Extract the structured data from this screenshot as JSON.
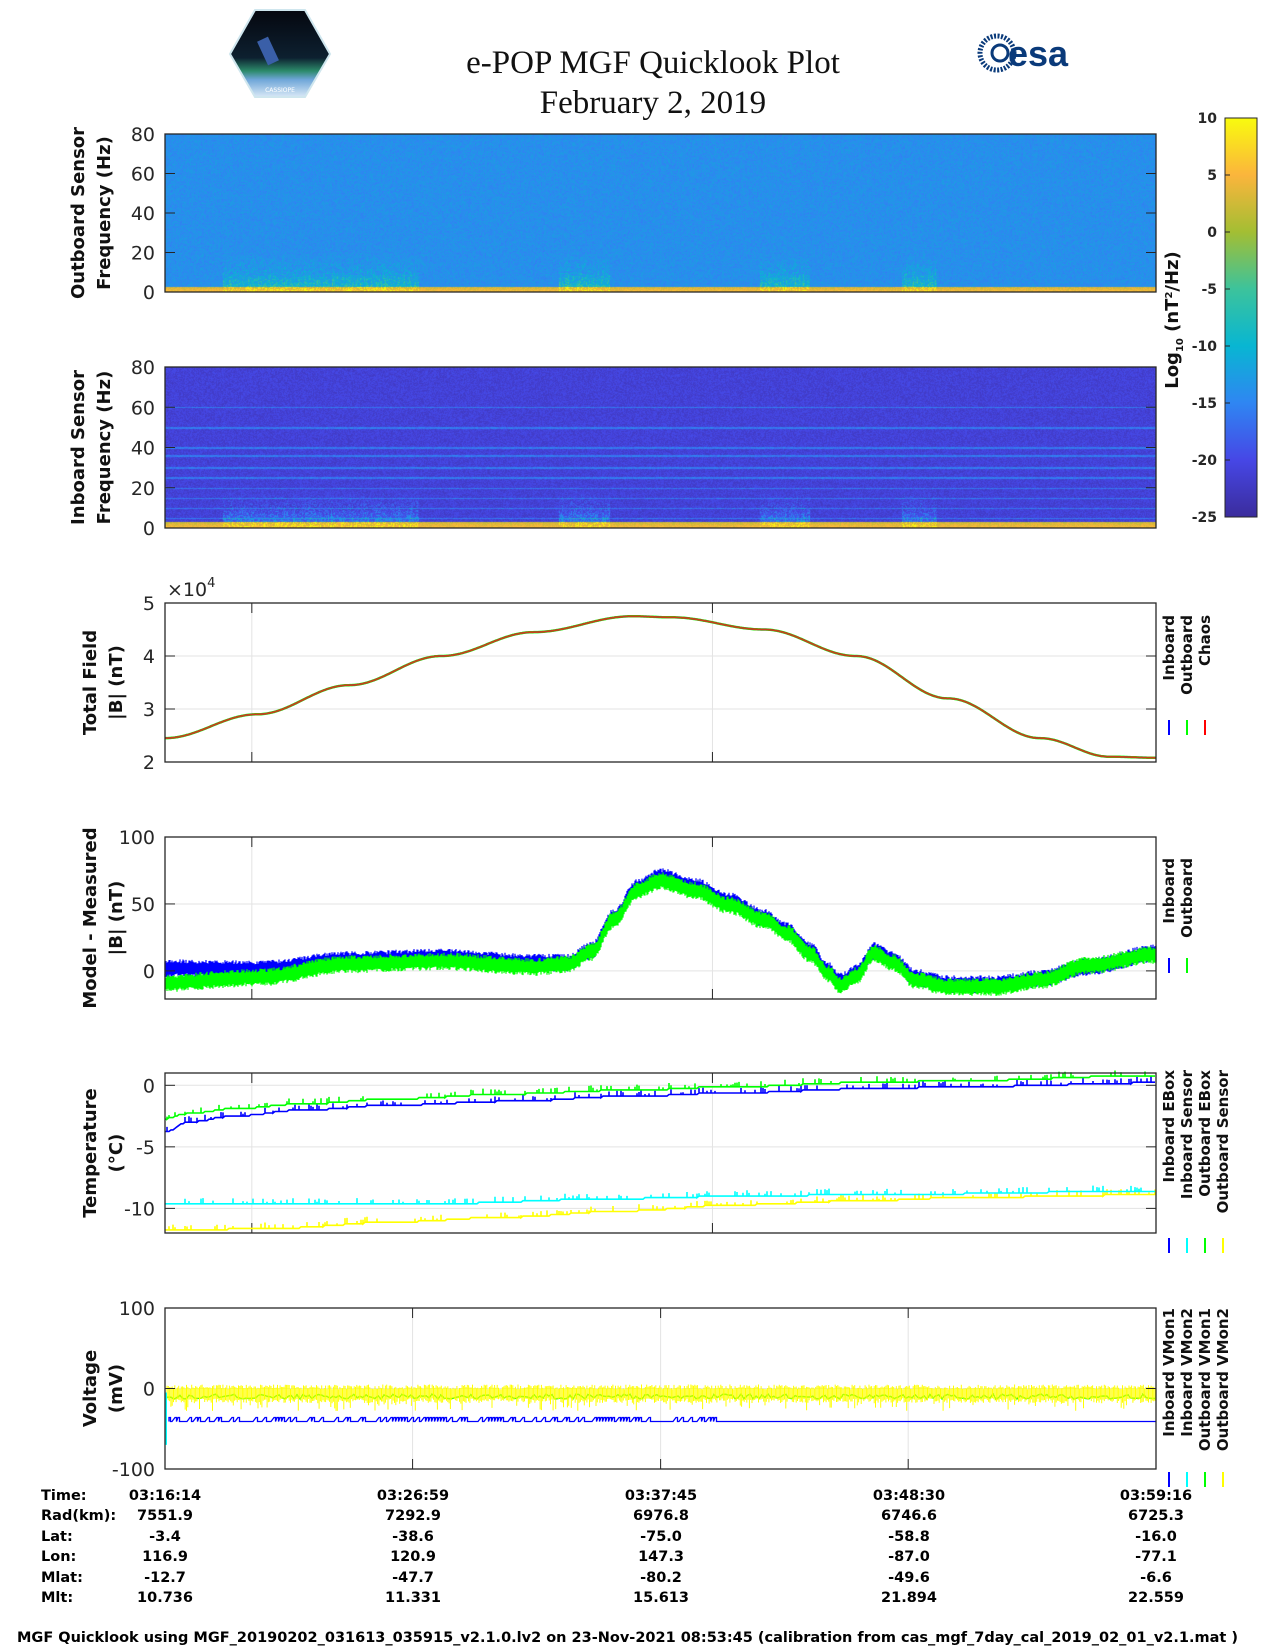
{
  "header": {
    "title": "e-POP MGF Quicklook Plot",
    "date": "February 2, 2019",
    "left_logo_text": "CASSIOPE",
    "right_logo_text": "esa"
  },
  "colorbar": {
    "label_parts": [
      "Log",
      "10",
      " (nT",
      "2",
      "/Hz)"
    ],
    "range": [
      -25,
      10
    ],
    "ticks": [
      10,
      5,
      0,
      -5,
      -10,
      -15,
      -20,
      -25
    ],
    "colors": {
      "-25": "#3b2c9c",
      "-20": "#4647e6",
      "-15": "#2f86f2",
      "-10": "#08b6d2",
      "-5": "#3cc39c",
      "0": "#a3be33",
      "5": "#fbb53c",
      "10": "#f9fb0e"
    }
  },
  "multiplier": {
    "base": "×10",
    "exp": "4"
  },
  "chart_data": {
    "time_range_minutes": [
      0,
      43.03
    ],
    "panels": [
      {
        "id": "spec_out",
        "type": "heatmap",
        "ylabel": [
          "Outboard Sensor",
          "Frequency (Hz)"
        ],
        "ylim": [
          0,
          80
        ],
        "yticks": [
          0,
          20,
          40,
          60,
          80
        ],
        "background_log": -14,
        "low_freq_band_hz": 3,
        "burst_intervals_min": [
          [
            2.5,
            11
          ],
          [
            17.1,
            19.3
          ],
          [
            25.8,
            28.0
          ],
          [
            32.0,
            33.5
          ]
        ],
        "line_freqs_hz": []
      },
      {
        "id": "spec_in",
        "type": "heatmap",
        "ylabel": [
          "Inboard Sensor",
          "Frequency (Hz)"
        ],
        "ylim": [
          0,
          80
        ],
        "yticks": [
          0,
          20,
          40,
          60,
          80
        ],
        "background_log": -21,
        "low_freq_band_hz": 3,
        "burst_intervals_min": [
          [
            2.5,
            11
          ],
          [
            17.1,
            19.3
          ],
          [
            25.8,
            28.0
          ],
          [
            32.0,
            33.5
          ]
        ],
        "line_freqs_hz": [
          5,
          10,
          15,
          20,
          25,
          30,
          36,
          40,
          50,
          60
        ]
      },
      {
        "id": "total",
        "type": "line",
        "ylabel": [
          "Total Field",
          "|B| (nT)"
        ],
        "ylim": [
          2,
          5
        ],
        "yticks": [
          2,
          3,
          4,
          5
        ],
        "scale": 10000,
        "xgrid_min": [
          3.77,
          23.77
        ],
        "legend": [
          {
            "label": "Inboard",
            "color": "#0000ff"
          },
          {
            "label": "Outboard",
            "color": "#00ff00"
          },
          {
            "label": "Chaos",
            "color": "#ff0000"
          }
        ],
        "series": [
          {
            "name": "Chaos",
            "x": [
              0,
              4,
              8,
              12,
              16,
              20.3,
              22,
              26,
              30,
              34,
              38,
              41,
              43.03
            ],
            "y": [
              2.45,
              2.9,
              3.45,
              4.0,
              4.45,
              4.75,
              4.73,
              4.5,
              4.0,
              3.2,
              2.45,
              2.1,
              2.08
            ]
          }
        ]
      },
      {
        "id": "model",
        "type": "line",
        "ylabel": [
          "Model - Measured",
          "|B| (nT)"
        ],
        "ylim": [
          -21,
          100
        ],
        "yticks": [
          0,
          50,
          100
        ],
        "xgrid_min": [
          3.77,
          23.77
        ],
        "legend": [
          {
            "label": "Inboard",
            "color": "#0000ff"
          },
          {
            "label": "Outboard",
            "color": "#00ff00"
          }
        ],
        "series": [
          {
            "name": "Inboard",
            "x": [
              0,
              4,
              8,
              12,
              16,
              17.5,
              18.5,
              19.5,
              20.5,
              21.5,
              23,
              24.5,
              26,
              27,
              28,
              28.8,
              29.3,
              30,
              30.8,
              31.6,
              32.6,
              34,
              36,
              38,
              40,
              43.03
            ],
            "y": [
              2,
              1,
              8,
              10,
              6,
              6,
              15,
              40,
              62,
              70,
              63,
              52,
              40,
              30,
              15,
              0,
              -8,
              -2,
              15,
              8,
              -5,
              -10,
              -10,
              -6,
              3,
              13
            ]
          },
          {
            "name": "Outboard",
            "x": [
              0,
              4,
              8,
              12,
              16,
              17.5,
              18.5,
              19.5,
              20.5,
              21.5,
              23,
              24.5,
              26,
              27,
              28,
              28.8,
              29.3,
              30,
              30.8,
              31.6,
              32.6,
              34,
              36,
              38,
              40,
              43.03
            ],
            "y": [
              -9,
              -5,
              5,
              7,
              3,
              5,
              14,
              38,
              60,
              67,
              60,
              49,
              38,
              28,
              13,
              -2,
              -11,
              -4,
              13,
              6,
              -7,
              -12,
              -12,
              -7,
              4,
              12
            ]
          }
        ]
      },
      {
        "id": "temp",
        "type": "line",
        "ylabel": [
          "Temperature",
          "(°C)"
        ],
        "ylim": [
          -12,
          1
        ],
        "yticks": [
          -10,
          -5,
          0
        ],
        "xgrid_min": [
          3.77,
          23.77
        ],
        "legend": [
          {
            "label": "Inboard EBox",
            "color": "#0000ff"
          },
          {
            "label": "Inboard Sensor",
            "color": "#00ffff"
          },
          {
            "label": "Outboard EBox",
            "color": "#00ff00"
          },
          {
            "label": "Outboard Sensor",
            "color": "#ffff00"
          }
        ],
        "series": [
          {
            "name": "Inboard EBox",
            "x": [
              0,
              1,
              3,
              6,
              10,
              15,
              20,
              25,
              30,
              35,
              43.03
            ],
            "y": [
              -3.8,
              -3.0,
              -2.5,
              -2.0,
              -1.6,
              -1.3,
              -0.9,
              -0.6,
              -0.3,
              -0.1,
              0.2
            ]
          },
          {
            "name": "Inboard Sensor",
            "x": [
              0,
              12,
              20,
              25,
              30,
              43.03
            ],
            "y": [
              -9.6,
              -9.6,
              -9.2,
              -9.0,
              -8.9,
              -8.6
            ]
          },
          {
            "name": "Outboard EBox",
            "x": [
              0,
              1,
              3,
              6,
              10,
              15,
              20,
              25,
              30,
              35,
              43.03
            ],
            "y": [
              -2.7,
              -2.3,
              -1.9,
              -1.5,
              -1.1,
              -0.7,
              -0.4,
              -0.1,
              0.2,
              0.4,
              0.8
            ]
          },
          {
            "name": "Outboard Sensor",
            "x": [
              0,
              5,
              10,
              15,
              20,
              25,
              30,
              35,
              43.03
            ],
            "y": [
              -11.8,
              -11.6,
              -11.1,
              -10.7,
              -10.2,
              -9.7,
              -9.4,
              -9.1,
              -8.9
            ]
          }
        ]
      },
      {
        "id": "volt",
        "type": "line",
        "ylabel": [
          "Voltage",
          "(mV)"
        ],
        "ylim": [
          -100,
          100
        ],
        "yticks": [
          -100,
          0,
          100
        ],
        "xgrid_min": [
          0,
          10.75,
          21.52,
          32.27,
          43.03
        ],
        "legend": [
          {
            "label": "Inboard VMon1",
            "color": "#0000ff"
          },
          {
            "label": "Inboard VMon2",
            "color": "#00ffff"
          },
          {
            "label": "Outboard VMon1",
            "color": "#00ff00"
          },
          {
            "label": "Outboard VMon2",
            "color": "#ffff00"
          }
        ],
        "series": [
          {
            "name": "Inboard VMon1",
            "level": -41
          },
          {
            "name": "Inboard VMon2",
            "level": -70
          },
          {
            "name": "Outboard VMon1",
            "level": -10
          },
          {
            "name": "Outboard VMon2",
            "range": [
              -28,
              5
            ]
          }
        ]
      }
    ]
  },
  "ephemeris": {
    "labels": [
      "Time:",
      "Rad(km):",
      "Lat:",
      "Lon:",
      "Mlat:",
      "Mlt:"
    ],
    "columns": [
      [
        "03:16:14",
        "7551.9",
        "-3.4",
        "116.9",
        "-12.7",
        "10.736"
      ],
      [
        "03:26:59",
        "7292.9",
        "-38.6",
        "120.9",
        "-47.7",
        "11.331"
      ],
      [
        "03:37:45",
        "6976.8",
        "-75.0",
        "147.3",
        "-80.2",
        "15.613"
      ],
      [
        "03:48:30",
        "6746.6",
        "-58.8",
        "-87.0",
        "-49.6",
        "21.894"
      ],
      [
        "03:59:16",
        "6725.3",
        "-16.0",
        "-77.1",
        "-6.6",
        "22.559"
      ]
    ]
  },
  "footer": "MGF Quicklook using MGF_20190202_031613_035915_v2.1.0.lv2 on 23-Nov-2021 08:53:45 (calibration from cas_mgf_7day_cal_2019_02_01_v2.1.mat )"
}
